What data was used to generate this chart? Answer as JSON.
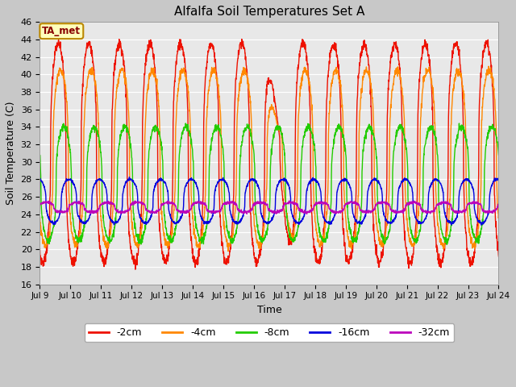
{
  "title": "Alfalfa Soil Temperatures Set A",
  "xlabel": "Time",
  "ylabel": "Soil Temperature (C)",
  "ylim": [
    16,
    46
  ],
  "yticks": [
    16,
    18,
    20,
    22,
    24,
    26,
    28,
    30,
    32,
    34,
    36,
    38,
    40,
    42,
    44,
    46
  ],
  "plot_bg_color": "#e8e8e8",
  "fig_bg_color": "#c8c8c8",
  "series_colors": {
    "-2cm": "#ee1100",
    "-4cm": "#ff8800",
    "-8cm": "#22cc00",
    "-16cm": "#0000dd",
    "-32cm": "#bb00bb"
  },
  "annotation_text": "TA_met",
  "annotation_color": "#880000",
  "annotation_bg": "#ffffbb",
  "annotation_border": "#bb8800",
  "n_days": 15,
  "ppd": 144,
  "depths": [
    "-2cm",
    "-4cm",
    "-8cm",
    "-16cm",
    "-32cm"
  ],
  "depth_params": {
    "-2cm": {
      "mean": 31.0,
      "amp": 12.5,
      "phase": 0.0,
      "lag": 0.0
    },
    "-4cm": {
      "mean": 30.5,
      "amp": 10.0,
      "phase": 0.0,
      "lag": 0.08
    },
    "-8cm": {
      "mean": 27.5,
      "amp": 6.5,
      "phase": 0.0,
      "lag": 0.18
    },
    "-16cm": {
      "mean": 25.5,
      "amp": 2.5,
      "phase": 0.0,
      "lag": 0.35
    },
    "-32cm": {
      "mean": 24.8,
      "amp": 0.55,
      "phase": 0.0,
      "lag": 0.6
    }
  },
  "xtick_labels": [
    "Jul 9",
    "Jul 10",
    "Jul 11",
    "Jul 12",
    "Jul 13",
    "Jul 14",
    "Jul 15",
    "Jul 16",
    "Jul 17",
    "Jul 18",
    "Jul 19",
    "Jul 20",
    "Jul 21",
    "Jul 22",
    "Jul 23",
    "Jul 24"
  ],
  "legend_labels": [
    "-2cm",
    "-4cm",
    "-8cm",
    "-16cm",
    "-32cm"
  ],
  "lw": 1.0
}
